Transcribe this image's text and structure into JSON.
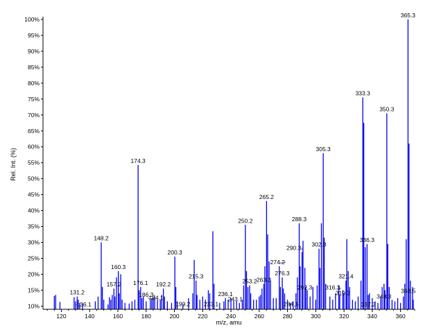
{
  "chart_data": {
    "type": "bar",
    "xlabel": "m/z, amu",
    "ylabel": "Rel. Int. (%)",
    "xlim": [
      107,
      370
    ],
    "ylim": [
      9,
      100
    ],
    "grid": false,
    "bar_color": "#0000ee",
    "leader_color": "#3a3a8a",
    "x_ticks": [
      120,
      140,
      160,
      180,
      200,
      220,
      240,
      260,
      280,
      300,
      320,
      340,
      360
    ],
    "y_ticks": [
      10,
      15,
      20,
      25,
      30,
      35,
      40,
      45,
      50,
      55,
      60,
      65,
      70,
      75,
      80,
      85,
      90,
      95,
      100
    ],
    "y_tick_labels": [
      "10%",
      "15%",
      "20%",
      "25%",
      "30%",
      "35%",
      "40%",
      "45%",
      "50%",
      "55%",
      "60%",
      "65%",
      "70%",
      "75%",
      "80%",
      "85%",
      "90%",
      "95%",
      "100%"
    ],
    "peaks": [
      [
        115,
        13.2
      ],
      [
        116,
        13.5
      ],
      [
        119,
        11.3
      ],
      [
        129,
        12.8
      ],
      [
        130,
        11.5
      ],
      [
        131.2,
        13.0
      ],
      [
        132,
        12.0
      ],
      [
        133,
        11.0
      ],
      [
        135,
        10.8
      ],
      [
        144,
        11.5
      ],
      [
        146,
        13.0
      ],
      [
        148.2,
        30.0
      ],
      [
        149,
        16.0
      ],
      [
        150,
        12.0
      ],
      [
        153,
        10.5
      ],
      [
        154,
        12.8
      ],
      [
        155,
        12.0
      ],
      [
        156,
        13.5
      ],
      [
        157.2,
        15.5
      ],
      [
        158,
        13.0
      ],
      [
        159,
        19.0
      ],
      [
        160.3,
        21.0
      ],
      [
        161,
        14.0
      ],
      [
        162,
        20.0
      ],
      [
        163,
        12.0
      ],
      [
        165,
        11.0
      ],
      [
        168,
        10.8
      ],
      [
        170,
        11.5
      ],
      [
        172,
        12.0
      ],
      [
        174.3,
        54.3
      ],
      [
        175,
        15.0
      ],
      [
        176.1,
        16.0
      ],
      [
        177,
        12.5
      ],
      [
        178,
        13.0
      ],
      [
        180,
        11.5
      ],
      [
        183,
        11.8
      ],
      [
        184,
        12.5
      ],
      [
        185,
        12.5
      ],
      [
        186,
        13.0
      ],
      [
        188,
        12.0
      ],
      [
        190,
        12.0
      ],
      [
        191,
        13.5
      ],
      [
        192.2,
        15.5
      ],
      [
        193,
        13.0
      ],
      [
        195,
        11.5
      ],
      [
        198,
        11.0
      ],
      [
        200.3,
        25.5
      ],
      [
        201,
        16.0
      ],
      [
        202,
        11.5
      ],
      [
        206,
        10.5
      ],
      [
        210,
        12.5
      ],
      [
        213,
        14.0
      ],
      [
        214,
        24.5
      ],
      [
        215.3,
        18.0
      ],
      [
        216,
        13.5
      ],
      [
        218,
        12.0
      ],
      [
        220,
        13.0
      ],
      [
        222,
        12.0
      ],
      [
        224,
        15.0
      ],
      [
        225,
        14.0
      ],
      [
        227.2,
        33.5
      ],
      [
        228,
        17.0
      ],
      [
        232,
        11.0
      ],
      [
        235,
        11.5
      ],
      [
        236.1,
        12.5
      ],
      [
        238,
        12.0
      ],
      [
        240,
        12.5
      ],
      [
        242,
        11.5
      ],
      [
        244,
        11.5
      ],
      [
        246,
        11.0
      ],
      [
        248,
        12.0
      ],
      [
        249,
        16.5
      ],
      [
        250.2,
        35.5
      ],
      [
        251,
        21.0
      ],
      [
        252,
        16.0
      ],
      [
        253.2,
        16.5
      ],
      [
        254,
        14.0
      ],
      [
        256,
        12.0
      ],
      [
        258,
        12.0
      ],
      [
        260,
        13.0
      ],
      [
        261,
        13.5
      ],
      [
        262,
        15.5
      ],
      [
        263.3,
        17.0
      ],
      [
        264,
        22.5
      ],
      [
        265.2,
        43.0
      ],
      [
        266,
        32.5
      ],
      [
        267,
        24.0
      ],
      [
        268,
        18.0
      ],
      [
        270,
        12.5
      ],
      [
        272,
        12.5
      ],
      [
        274.2,
        22.5
      ],
      [
        275,
        16.0
      ],
      [
        276.3,
        19.0
      ],
      [
        277,
        15.5
      ],
      [
        278,
        14.0
      ],
      [
        280,
        12.0
      ],
      [
        282,
        11.0
      ],
      [
        284,
        11.5
      ],
      [
        286,
        14.0
      ],
      [
        287,
        19.0
      ],
      [
        288.3,
        36.0
      ],
      [
        289,
        22.5
      ],
      [
        290.3,
        27.0
      ],
      [
        291,
        30.5
      ],
      [
        292.3,
        22.0
      ],
      [
        293,
        16.0
      ],
      [
        294,
        15.0
      ],
      [
        296,
        13.0
      ],
      [
        298,
        16.0
      ],
      [
        300,
        12.0
      ],
      [
        301,
        16.5
      ],
      [
        302.3,
        28.0
      ],
      [
        303,
        22.0
      ],
      [
        304,
        36.0
      ],
      [
        305.3,
        58.0
      ],
      [
        306,
        31.5
      ],
      [
        307,
        17.0
      ],
      [
        310,
        13.0
      ],
      [
        312,
        12.0
      ],
      [
        314,
        14.0
      ],
      [
        316.3,
        16.5
      ],
      [
        317,
        13.5
      ],
      [
        319.2,
        15.0
      ],
      [
        320,
        14.0
      ],
      [
        321.4,
        18.0
      ],
      [
        322,
        31.0
      ],
      [
        323,
        21.0
      ],
      [
        324,
        16.0
      ],
      [
        326,
        12.0
      ],
      [
        328,
        11.5
      ],
      [
        330,
        13.0
      ],
      [
        332,
        18.0
      ],
      [
        333.3,
        75.5
      ],
      [
        334,
        67.5
      ],
      [
        335,
        28.5
      ],
      [
        336.3,
        29.5
      ],
      [
        337.2,
        13.5
      ],
      [
        338,
        14.0
      ],
      [
        340,
        12.5
      ],
      [
        342,
        11.5
      ],
      [
        344,
        11.0
      ],
      [
        346,
        13.0
      ],
      [
        347,
        16.0
      ],
      [
        348.3,
        17.0
      ],
      [
        349,
        15.0
      ],
      [
        350.3,
        70.5
      ],
      [
        351,
        29.5
      ],
      [
        352,
        16.0
      ],
      [
        354,
        12.0
      ],
      [
        356,
        11.5
      ],
      [
        358,
        12.5
      ],
      [
        360,
        11.0
      ],
      [
        362,
        13.0
      ],
      [
        363,
        17.0
      ],
      [
        364,
        31.0
      ],
      [
        365.3,
        100
      ],
      [
        366,
        61.0
      ],
      [
        367,
        18.0
      ],
      [
        368.5,
        16.0
      ],
      [
        369,
        12.0
      ]
    ],
    "annotations": [
      {
        "label": "131.2",
        "x": 131.2,
        "y": 13.0
      },
      {
        "label": "136.1",
        "x": 136.0,
        "y": 9.2,
        "leader_to": [
          133,
          9.8
        ]
      },
      {
        "label": "148.2",
        "x": 148.2,
        "y": 30.0
      },
      {
        "label": "157.2",
        "x": 157.2,
        "y": 15.5
      },
      {
        "label": "160.3",
        "x": 160.3,
        "y": 21.0
      },
      {
        "label": "174.3",
        "x": 174.3,
        "y": 54.3
      },
      {
        "label": "176.1",
        "x": 176.1,
        "y": 16.0
      },
      {
        "label": "186.3",
        "x": 180.0,
        "y": 12.3,
        "leader_to": [
          186,
          12.6
        ]
      },
      {
        "label": "184.1",
        "x": 187.0,
        "y": 11.3,
        "leader_to": [
          184,
          12.0
        ]
      },
      {
        "label": "192.2",
        "x": 192.2,
        "y": 15.5
      },
      {
        "label": "200.3",
        "x": 200.3,
        "y": 25.5
      },
      {
        "label": "199.2",
        "x": 206.0,
        "y": 9.3,
        "leader_to": [
          201,
          9.8
        ]
      },
      {
        "label": "215.3",
        "x": 215.3,
        "y": 18.0
      },
      {
        "label": "233.1",
        "x": 226.0,
        "y": 9.3,
        "leader_to": [
          232,
          9.8
        ]
      },
      {
        "label": "236.1",
        "x": 236.1,
        "y": 12.5
      },
      {
        "label": "243.1",
        "x": 243.1,
        "y": 10.8
      },
      {
        "label": "253.2",
        "x": 253.2,
        "y": 16.5
      },
      {
        "label": "250.2",
        "x": 250.2,
        "y": 35.5
      },
      {
        "label": "263.3",
        "x": 263.3,
        "y": 17.0
      },
      {
        "label": "265.2",
        "x": 265.2,
        "y": 43.0
      },
      {
        "label": "274.2",
        "x": 273.0,
        "y": 22.5,
        "leader_to": [
          274,
          23.5
        ]
      },
      {
        "label": "276.3",
        "x": 276.3,
        "y": 19.0
      },
      {
        "label": "284.1",
        "x": 282.5,
        "y": 9.3,
        "leader_to": [
          285,
          9.8
        ]
      },
      {
        "label": "288.3",
        "x": 288.3,
        "y": 36.0
      },
      {
        "label": "290.3",
        "x": 284.5,
        "y": 27.0,
        "leader_to": [
          290,
          27.5
        ]
      },
      {
        "label": "292.3",
        "x": 292.3,
        "y": 14.5
      },
      {
        "label": "302.3",
        "x": 302.3,
        "y": 28.0
      },
      {
        "label": "305.3",
        "x": 305.3,
        "y": 58.0
      },
      {
        "label": "316.3",
        "x": 312.0,
        "y": 14.5,
        "leader_to": [
          316,
          14.8
        ]
      },
      {
        "label": "319.2",
        "x": 319.2,
        "y": 12.8
      },
      {
        "label": "321.4",
        "x": 321.4,
        "y": 18.0
      },
      {
        "label": "333.3",
        "x": 333.3,
        "y": 75.5
      },
      {
        "label": "336.3",
        "x": 336.3,
        "y": 29.5
      },
      {
        "label": "337.2",
        "x": 337.2,
        "y": 9.2
      },
      {
        "label": "350.3",
        "x": 350.3,
        "y": 70.5
      },
      {
        "label": "348.3",
        "x": 348.3,
        "y": 11.7
      },
      {
        "label": "368.5",
        "x": 365.5,
        "y": 13.5
      },
      {
        "label": "365.3",
        "x": 365.3,
        "y": 100
      }
    ]
  }
}
